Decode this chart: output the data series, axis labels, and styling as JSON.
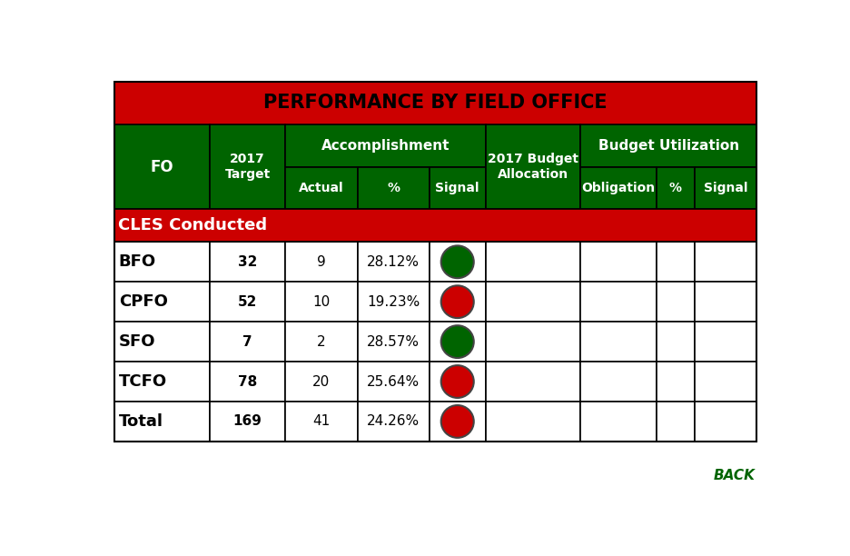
{
  "title": "PERFORMANCE BY FIELD OFFICE",
  "title_bg": "#CC0000",
  "header_bg": "#006400",
  "subheader_bg": "#CC0000",
  "row_bg": "#FFFFFF",
  "section_label": "CLES Conducted",
  "back_text": "BACK",
  "back_color": "#006400",
  "rows": [
    {
      "fo": "BFO",
      "target": "32",
      "actual": "9",
      "pct": "28.12%",
      "signal": "green"
    },
    {
      "fo": "CPFO",
      "target": "52",
      "actual": "10",
      "pct": "19.23%",
      "signal": "red"
    },
    {
      "fo": "SFO",
      "target": "7",
      "actual": "2",
      "pct": "28.57%",
      "signal": "green"
    },
    {
      "fo": "TCFO",
      "target": "78",
      "actual": "20",
      "pct": "25.64%",
      "signal": "red"
    },
    {
      "fo": "Total",
      "target": "169",
      "actual": "41",
      "pct": "24.26%",
      "signal": "red"
    }
  ],
  "figsize": [
    9.36,
    6.12
  ],
  "dpi": 100
}
